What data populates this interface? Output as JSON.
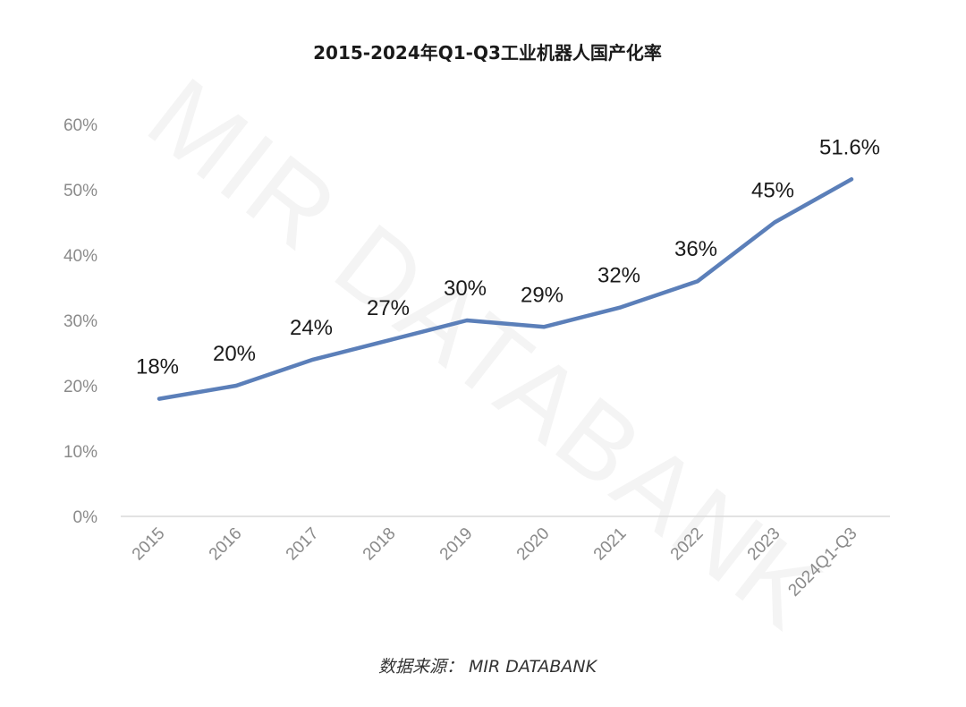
{
  "chart_data": {
    "type": "line",
    "title": "2015-2024年Q1-Q3工业机器人国产化率",
    "categories": [
      "2015",
      "2016",
      "2017",
      "2018",
      "2019",
      "2020",
      "2021",
      "2022",
      "2023",
      "2024Q1-Q3"
    ],
    "values": [
      18,
      20,
      24,
      27,
      30,
      29,
      32,
      36,
      45,
      51.6
    ],
    "data_labels": [
      "18%",
      "20%",
      "24%",
      "27%",
      "30%",
      "29%",
      "32%",
      "36%",
      "45%",
      "51.6%"
    ],
    "yticks": [
      "0%",
      "10%",
      "20%",
      "30%",
      "40%",
      "50%",
      "60%"
    ],
    "ylim": [
      0,
      60
    ],
    "xlabel": "",
    "ylabel": "",
    "grid": false,
    "legend": "none",
    "line_color": "#5b7fb9"
  },
  "source": "数据来源： MIR DATABANK",
  "watermark": "MIR DATABANK"
}
